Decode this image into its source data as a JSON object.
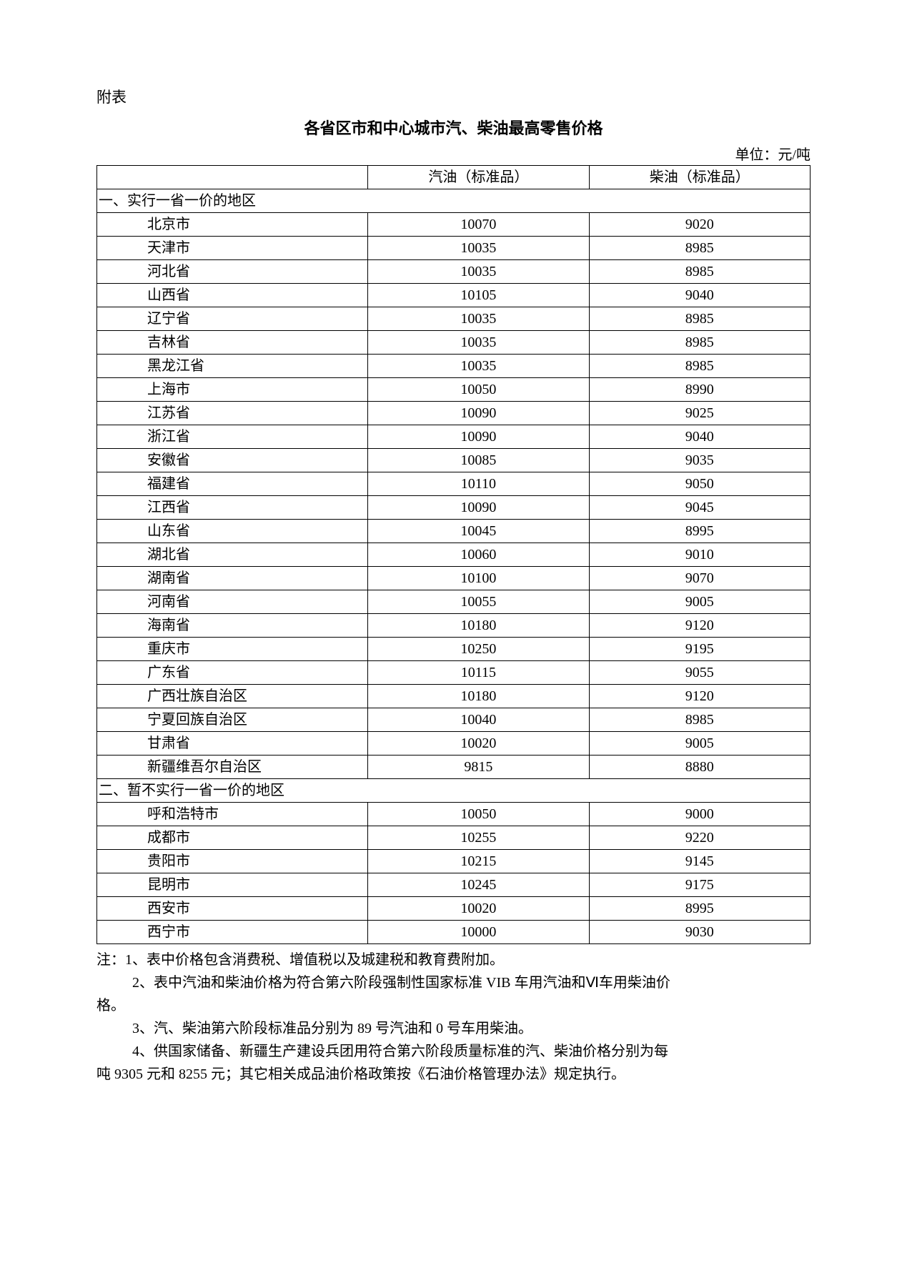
{
  "attach_label": "附表",
  "title": "各省区市和中心城市汽、柴油最高零售价格",
  "unit_label": "单位：元/吨",
  "table": {
    "headers": [
      "",
      "汽油（标准品）",
      "柴油（标准品）"
    ],
    "section1_label": "一、实行一省一价的地区",
    "section2_label": "二、暂不实行一省一价的地区",
    "rows1": [
      {
        "name": "北京市",
        "gas": "10070",
        "diesel": "9020"
      },
      {
        "name": "天津市",
        "gas": "10035",
        "diesel": "8985"
      },
      {
        "name": "河北省",
        "gas": "10035",
        "diesel": "8985"
      },
      {
        "name": "山西省",
        "gas": "10105",
        "diesel": "9040"
      },
      {
        "name": "辽宁省",
        "gas": "10035",
        "diesel": "8985"
      },
      {
        "name": "吉林省",
        "gas": "10035",
        "diesel": "8985"
      },
      {
        "name": "黑龙江省",
        "gas": "10035",
        "diesel": "8985"
      },
      {
        "name": "上海市",
        "gas": "10050",
        "diesel": "8990"
      },
      {
        "name": "江苏省",
        "gas": "10090",
        "diesel": "9025"
      },
      {
        "name": "浙江省",
        "gas": "10090",
        "diesel": "9040"
      },
      {
        "name": "安徽省",
        "gas": "10085",
        "diesel": "9035"
      },
      {
        "name": "福建省",
        "gas": "10110",
        "diesel": "9050"
      },
      {
        "name": "江西省",
        "gas": "10090",
        "diesel": "9045"
      },
      {
        "name": "山东省",
        "gas": "10045",
        "diesel": "8995"
      },
      {
        "name": "湖北省",
        "gas": "10060",
        "diesel": "9010"
      },
      {
        "name": "湖南省",
        "gas": "10100",
        "diesel": "9070"
      },
      {
        "name": "河南省",
        "gas": "10055",
        "diesel": "9005"
      },
      {
        "name": "海南省",
        "gas": "10180",
        "diesel": "9120"
      },
      {
        "name": "重庆市",
        "gas": "10250",
        "diesel": "9195"
      },
      {
        "name": "广东省",
        "gas": "10115",
        "diesel": "9055"
      },
      {
        "name": "广西壮族自治区",
        "gas": "10180",
        "diesel": "9120"
      },
      {
        "name": "宁夏回族自治区",
        "gas": "10040",
        "diesel": "8985"
      },
      {
        "name": "甘肃省",
        "gas": "10020",
        "diesel": "9005"
      },
      {
        "name": "新疆维吾尔自治区",
        "gas": "9815",
        "diesel": "8880"
      }
    ],
    "rows2": [
      {
        "name": "呼和浩特市",
        "gas": "10050",
        "diesel": "9000"
      },
      {
        "name": "成都市",
        "gas": "10255",
        "diesel": "9220"
      },
      {
        "name": "贵阳市",
        "gas": "10215",
        "diesel": "9145"
      },
      {
        "name": "昆明市",
        "gas": "10245",
        "diesel": "9175"
      },
      {
        "name": "西安市",
        "gas": "10020",
        "diesel": "8995"
      },
      {
        "name": "西宁市",
        "gas": "10000",
        "diesel": "9030"
      }
    ]
  },
  "notes": {
    "n1": "注：1、表中价格包含消费税、增值税以及城建税和教育费附加。",
    "n2a": "2、表中汽油和柴油价格为符合第六阶段强制性国家标准 VIB 车用汽油和Ⅵ车用柴油价",
    "n2b": "格。",
    "n3": "3、汽、柴油第六阶段标准品分别为 89 号汽油和 0 号车用柴油。",
    "n4a": "4、供国家储备、新疆生产建设兵团用符合第六阶段质量标准的汽、柴油价格分别为每",
    "n4b": "吨 9305 元和 8255 元；其它相关成品油价格政策按《石油价格管理办法》规定执行。"
  }
}
